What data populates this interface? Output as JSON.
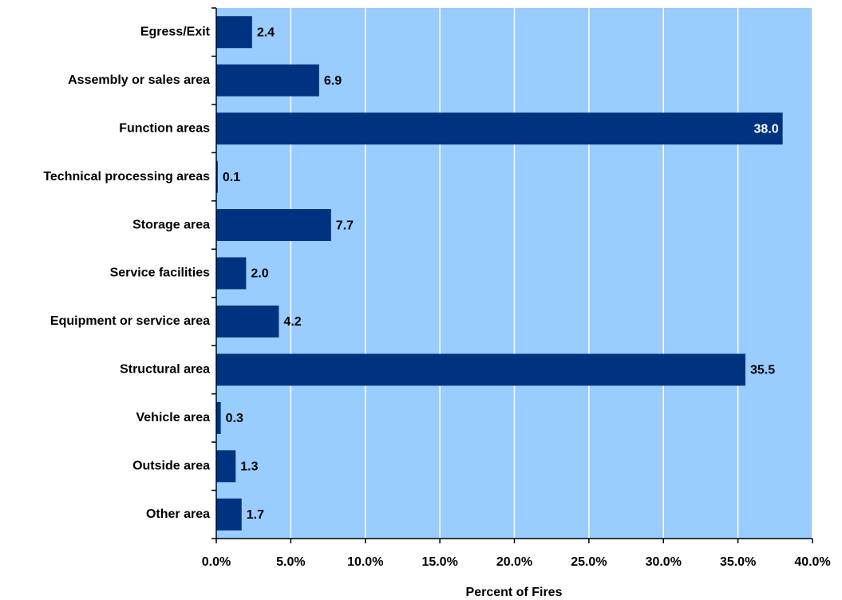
{
  "chart_data": {
    "type": "bar",
    "orientation": "horizontal",
    "x_label": "Percent of Fires",
    "categories": [
      "Egress/Exit",
      "Assembly or sales area",
      "Function areas",
      "Technical processing areas",
      "Storage area",
      "Service facilities",
      "Equipment or service area",
      "Structural area",
      "Vehicle area",
      "Outside area",
      "Other area"
    ],
    "values": [
      2.4,
      6.9,
      38.0,
      0.1,
      7.7,
      2.0,
      4.2,
      35.5,
      0.3,
      1.3,
      1.7
    ],
    "value_labels": [
      "2.4",
      "6.9",
      "38.0",
      "0.1",
      "7.7",
      "2.0",
      "4.2",
      "35.5",
      "0.3",
      "1.3",
      "1.7"
    ],
    "color": "#00337f",
    "background": "#99ccff",
    "grid": true,
    "xlim": [
      0,
      40
    ],
    "xticks": [
      {
        "value": 0,
        "label": "0.0%"
      },
      {
        "value": 5,
        "label": "5.0%"
      },
      {
        "value": 10,
        "label": "10.0%"
      },
      {
        "value": 15,
        "label": "15.0%"
      },
      {
        "value": 20,
        "label": "20.0%"
      },
      {
        "value": 25,
        "label": "25.0%"
      },
      {
        "value": 30,
        "label": "30.0%"
      },
      {
        "value": 35,
        "label": "35.0%"
      },
      {
        "value": 40,
        "label": "40.0%"
      }
    ]
  }
}
